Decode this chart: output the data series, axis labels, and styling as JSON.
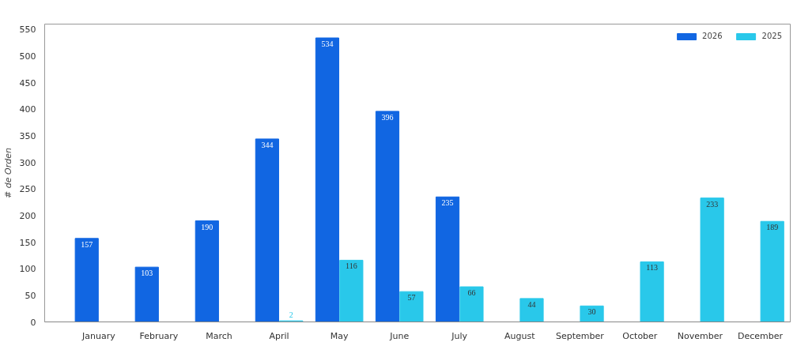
{
  "chart_data": {
    "type": "bar",
    "ylabel": "# de Orden",
    "categories": [
      "January",
      "February",
      "March",
      "April",
      "May",
      "June",
      "July",
      "August",
      "September",
      "October",
      "November",
      "December"
    ],
    "series": [
      {
        "name": "2026",
        "color": "#1166e2",
        "values": [
          157,
          103,
          190,
          344,
          534,
          396,
          235,
          null,
          null,
          null,
          null,
          null
        ]
      },
      {
        "name": "2025",
        "color": "#29c8ea",
        "values": [
          null,
          null,
          null,
          2,
          116,
          57,
          66,
          44,
          30,
          113,
          233,
          189
        ]
      }
    ],
    "ylim": [
      0,
      560
    ],
    "yticks": [
      0,
      50,
      100,
      150,
      200,
      250,
      300,
      350,
      400,
      450,
      500,
      550
    ],
    "data_labels": true,
    "legend": "top right"
  }
}
